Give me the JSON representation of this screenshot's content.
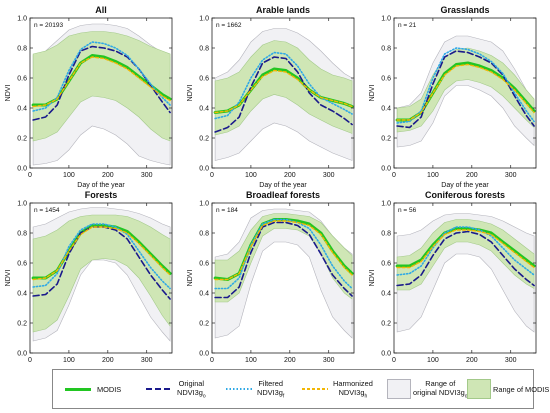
{
  "figure": {
    "ylabel": "NDVI",
    "xlabel": "Day of the year",
    "colors": {
      "modis": "#22c622",
      "original": "#1a1a8c",
      "filtered": "#2ea8e6",
      "harmonized": "#f2b705",
      "range_orig_fill": "#f1f1f4",
      "range_orig_edge": "#b4b4bc",
      "range_modis_fill": "#cfe6b5",
      "range_modis_edge": "#a3c98a"
    }
  },
  "legend": {
    "modis": "MODIS",
    "original_1": "Original",
    "original_2": "NDVI3g",
    "original_sub": "o",
    "filtered_1": "Filtered",
    "filtered_2": "NDVI3g",
    "filtered_sub": "f",
    "harmonized_1": "Harmonized",
    "harmonized_2": "NDVI3g",
    "harmonized_sub": "h",
    "range_orig_1": "Range of",
    "range_orig_2": "original NDVI3g",
    "range_orig_sub": "o",
    "range_modis": "Range of MODIS"
  },
  "chart_data": [
    {
      "type": "line",
      "title": "All",
      "n_label": "n = 20193",
      "xlabel": "Day of the year",
      "ylabel": "NDVI",
      "xlim": [
        0,
        365
      ],
      "ylim": [
        0,
        1.0
      ],
      "xticks": [
        0,
        100,
        200,
        300
      ],
      "yticks": [
        0,
        0.2,
        0.4,
        0.6,
        0.8,
        1.0
      ],
      "x": [
        8,
        40,
        70,
        100,
        130,
        160,
        190,
        220,
        250,
        280,
        310,
        340,
        360
      ],
      "series": [
        {
          "name": "MODIS",
          "values": [
            0.42,
            0.42,
            0.46,
            0.58,
            0.7,
            0.75,
            0.74,
            0.71,
            0.67,
            0.61,
            0.55,
            0.49,
            0.46
          ]
        },
        {
          "name": "Original NDVI3go",
          "values": [
            0.32,
            0.34,
            0.42,
            0.62,
            0.78,
            0.81,
            0.8,
            0.78,
            0.74,
            0.66,
            0.55,
            0.44,
            0.37
          ]
        },
        {
          "name": "Filtered NDVI3gf",
          "values": [
            0.38,
            0.4,
            0.47,
            0.65,
            0.79,
            0.84,
            0.83,
            0.8,
            0.75,
            0.66,
            0.56,
            0.47,
            0.42
          ]
        },
        {
          "name": "Harmonized NDVI3gh",
          "values": [
            0.41,
            0.42,
            0.46,
            0.58,
            0.7,
            0.74,
            0.73,
            0.7,
            0.66,
            0.6,
            0.54,
            0.48,
            0.45
          ]
        }
      ],
      "range_original": {
        "lower": [
          0.02,
          0.03,
          0.05,
          0.12,
          0.22,
          0.28,
          0.26,
          0.22,
          0.16,
          0.08,
          0.05,
          0.03,
          0.02
        ],
        "upper": [
          0.75,
          0.78,
          0.85,
          0.92,
          0.95,
          0.96,
          0.96,
          0.95,
          0.93,
          0.88,
          0.82,
          0.77,
          0.74
        ]
      },
      "range_modis": {
        "lower": [
          0.18,
          0.2,
          0.24,
          0.34,
          0.44,
          0.48,
          0.47,
          0.45,
          0.4,
          0.34,
          0.26,
          0.2,
          0.18
        ],
        "upper": [
          0.76,
          0.78,
          0.82,
          0.88,
          0.9,
          0.91,
          0.91,
          0.9,
          0.88,
          0.85,
          0.81,
          0.78,
          0.76
        ]
      }
    },
    {
      "type": "line",
      "title": "Arable lands",
      "n_label": "n = 1662",
      "xlabel": "Day of the year",
      "ylabel": "NDVI",
      "xlim": [
        0,
        365
      ],
      "ylim": [
        0,
        1.0
      ],
      "xticks": [
        0,
        100,
        200,
        300
      ],
      "yticks": [
        0,
        0.2,
        0.4,
        0.6,
        0.8,
        1.0
      ],
      "x": [
        8,
        40,
        70,
        100,
        130,
        160,
        190,
        220,
        250,
        280,
        310,
        340,
        360
      ],
      "series": [
        {
          "name": "MODIS",
          "values": [
            0.37,
            0.38,
            0.42,
            0.52,
            0.62,
            0.66,
            0.65,
            0.6,
            0.52,
            0.47,
            0.45,
            0.43,
            0.41
          ]
        },
        {
          "name": "Original NDVI3go",
          "values": [
            0.24,
            0.27,
            0.34,
            0.54,
            0.7,
            0.74,
            0.73,
            0.64,
            0.5,
            0.42,
            0.38,
            0.33,
            0.29
          ]
        },
        {
          "name": "Filtered NDVI3gf",
          "values": [
            0.33,
            0.35,
            0.44,
            0.6,
            0.72,
            0.77,
            0.76,
            0.68,
            0.56,
            0.47,
            0.43,
            0.39,
            0.36
          ]
        },
        {
          "name": "Harmonized NDVI3gh",
          "values": [
            0.37,
            0.38,
            0.42,
            0.52,
            0.61,
            0.65,
            0.64,
            0.59,
            0.52,
            0.47,
            0.45,
            0.43,
            0.41
          ]
        }
      ],
      "range_original": {
        "lower": [
          0.05,
          0.07,
          0.1,
          0.18,
          0.26,
          0.3,
          0.28,
          0.24,
          0.18,
          0.14,
          0.1,
          0.07,
          0.05
        ],
        "upper": [
          0.6,
          0.64,
          0.72,
          0.84,
          0.91,
          0.93,
          0.93,
          0.9,
          0.85,
          0.78,
          0.7,
          0.63,
          0.6
        ]
      },
      "range_modis": {
        "lower": [
          0.22,
          0.24,
          0.28,
          0.38,
          0.46,
          0.49,
          0.47,
          0.42,
          0.36,
          0.32,
          0.28,
          0.25,
          0.23
        ],
        "upper": [
          0.58,
          0.6,
          0.64,
          0.74,
          0.82,
          0.85,
          0.84,
          0.8,
          0.72,
          0.66,
          0.62,
          0.6,
          0.58
        ]
      }
    },
    {
      "type": "line",
      "title": "Grasslands",
      "n_label": "n = 21",
      "xlabel": "Day of the year",
      "ylabel": "NDVI",
      "xlim": [
        0,
        365
      ],
      "ylim": [
        0,
        1.0
      ],
      "xticks": [
        0,
        100,
        200,
        300
      ],
      "yticks": [
        0,
        0.2,
        0.4,
        0.6,
        0.8,
        1.0
      ],
      "x": [
        8,
        40,
        70,
        100,
        130,
        160,
        190,
        220,
        250,
        280,
        310,
        340,
        360
      ],
      "series": [
        {
          "name": "MODIS",
          "values": [
            0.32,
            0.32,
            0.37,
            0.5,
            0.63,
            0.69,
            0.7,
            0.68,
            0.65,
            0.6,
            0.53,
            0.44,
            0.38
          ]
        },
        {
          "name": "Original NDVI3go",
          "values": [
            0.28,
            0.27,
            0.34,
            0.56,
            0.74,
            0.78,
            0.77,
            0.74,
            0.7,
            0.62,
            0.48,
            0.35,
            0.28
          ]
        },
        {
          "name": "Filtered NDVI3gf",
          "values": [
            0.3,
            0.31,
            0.38,
            0.6,
            0.76,
            0.8,
            0.79,
            0.76,
            0.71,
            0.63,
            0.5,
            0.38,
            0.31
          ]
        },
        {
          "name": "Harmonized NDVI3gh",
          "values": [
            0.32,
            0.32,
            0.37,
            0.5,
            0.62,
            0.68,
            0.69,
            0.67,
            0.64,
            0.59,
            0.52,
            0.43,
            0.37
          ]
        }
      ],
      "range_original": {
        "lower": [
          0.14,
          0.15,
          0.18,
          0.3,
          0.48,
          0.55,
          0.55,
          0.52,
          0.48,
          0.4,
          0.28,
          0.2,
          0.15
        ],
        "upper": [
          0.4,
          0.42,
          0.5,
          0.7,
          0.84,
          0.88,
          0.88,
          0.86,
          0.84,
          0.78,
          0.66,
          0.52,
          0.44
        ]
      },
      "range_modis": {
        "lower": [
          0.24,
          0.25,
          0.28,
          0.38,
          0.52,
          0.58,
          0.59,
          0.57,
          0.54,
          0.48,
          0.4,
          0.32,
          0.27
        ],
        "upper": [
          0.4,
          0.41,
          0.46,
          0.62,
          0.74,
          0.79,
          0.8,
          0.78,
          0.75,
          0.7,
          0.62,
          0.52,
          0.46
        ]
      }
    },
    {
      "type": "line",
      "title": "Forests",
      "n_label": "n = 1454",
      "xlabel": "Day of the year",
      "ylabel": "NDVI",
      "xlim": [
        0,
        365
      ],
      "ylim": [
        0,
        1.0
      ],
      "xticks": [
        0,
        100,
        200,
        300
      ],
      "yticks": [
        0,
        0.2,
        0.4,
        0.6,
        0.8,
        1.0
      ],
      "x": [
        8,
        40,
        70,
        100,
        130,
        160,
        190,
        220,
        250,
        280,
        310,
        340,
        360
      ],
      "series": [
        {
          "name": "MODIS",
          "values": [
            0.5,
            0.5,
            0.55,
            0.68,
            0.8,
            0.85,
            0.85,
            0.84,
            0.81,
            0.74,
            0.66,
            0.58,
            0.53
          ]
        },
        {
          "name": "Original NDVI3go",
          "values": [
            0.38,
            0.39,
            0.46,
            0.66,
            0.8,
            0.84,
            0.84,
            0.82,
            0.76,
            0.64,
            0.52,
            0.42,
            0.36
          ]
        },
        {
          "name": "Filtered NDVI3gf",
          "values": [
            0.44,
            0.45,
            0.53,
            0.71,
            0.82,
            0.86,
            0.86,
            0.84,
            0.79,
            0.68,
            0.57,
            0.48,
            0.43
          ]
        },
        {
          "name": "Harmonized NDVI3gh",
          "values": [
            0.49,
            0.5,
            0.55,
            0.68,
            0.79,
            0.84,
            0.84,
            0.83,
            0.8,
            0.73,
            0.65,
            0.57,
            0.52
          ]
        }
      ],
      "range_original": {
        "lower": [
          0.08,
          0.1,
          0.15,
          0.32,
          0.52,
          0.62,
          0.62,
          0.6,
          0.52,
          0.38,
          0.24,
          0.14,
          0.08
        ],
        "upper": [
          0.84,
          0.86,
          0.9,
          0.94,
          0.96,
          0.97,
          0.97,
          0.96,
          0.95,
          0.93,
          0.9,
          0.86,
          0.84
        ]
      },
      "range_modis": {
        "lower": [
          0.14,
          0.16,
          0.22,
          0.38,
          0.56,
          0.62,
          0.63,
          0.62,
          0.58,
          0.5,
          0.38,
          0.25,
          0.18
        ],
        "upper": [
          0.76,
          0.78,
          0.82,
          0.88,
          0.91,
          0.92,
          0.92,
          0.92,
          0.91,
          0.88,
          0.84,
          0.79,
          0.76
        ]
      }
    },
    {
      "type": "line",
      "title": "Broadleaf forests",
      "n_label": "n = 184",
      "xlabel": "Day of the year",
      "ylabel": "NDVI",
      "xlim": [
        0,
        365
      ],
      "ylim": [
        0,
        1.0
      ],
      "xticks": [
        0,
        100,
        200,
        300
      ],
      "yticks": [
        0,
        0.2,
        0.4,
        0.6,
        0.8,
        1.0
      ],
      "x": [
        8,
        40,
        70,
        100,
        130,
        160,
        190,
        220,
        250,
        280,
        310,
        340,
        360
      ],
      "series": [
        {
          "name": "MODIS",
          "values": [
            0.5,
            0.49,
            0.53,
            0.72,
            0.86,
            0.89,
            0.89,
            0.88,
            0.86,
            0.8,
            0.68,
            0.58,
            0.53
          ]
        },
        {
          "name": "Original NDVI3go",
          "values": [
            0.37,
            0.37,
            0.44,
            0.67,
            0.84,
            0.87,
            0.87,
            0.85,
            0.79,
            0.66,
            0.52,
            0.43,
            0.38
          ]
        },
        {
          "name": "Filtered NDVI3gf",
          "values": [
            0.43,
            0.43,
            0.5,
            0.72,
            0.86,
            0.89,
            0.89,
            0.87,
            0.83,
            0.72,
            0.58,
            0.48,
            0.43
          ]
        },
        {
          "name": "Harmonized NDVI3gh",
          "values": [
            0.49,
            0.49,
            0.53,
            0.71,
            0.85,
            0.88,
            0.88,
            0.87,
            0.85,
            0.79,
            0.67,
            0.57,
            0.52
          ]
        }
      ],
      "range_original": {
        "lower": [
          0.1,
          0.12,
          0.18,
          0.46,
          0.68,
          0.74,
          0.74,
          0.72,
          0.64,
          0.42,
          0.24,
          0.15,
          0.1
        ],
        "upper": [
          0.64,
          0.66,
          0.74,
          0.9,
          0.95,
          0.96,
          0.96,
          0.95,
          0.94,
          0.88,
          0.78,
          0.7,
          0.66
        ]
      },
      "range_modis": {
        "lower": [
          0.34,
          0.34,
          0.4,
          0.6,
          0.78,
          0.83,
          0.83,
          0.82,
          0.78,
          0.66,
          0.5,
          0.4,
          0.36
        ],
        "upper": [
          0.62,
          0.62,
          0.68,
          0.82,
          0.91,
          0.93,
          0.93,
          0.92,
          0.91,
          0.87,
          0.78,
          0.7,
          0.65
        ]
      }
    },
    {
      "type": "line",
      "title": "Coniferous forests",
      "n_label": "n = 56",
      "xlabel": "Day of the year",
      "ylabel": "NDVI",
      "xlim": [
        0,
        365
      ],
      "ylim": [
        0,
        1.0
      ],
      "xticks": [
        0,
        100,
        200,
        300
      ],
      "yticks": [
        0,
        0.2,
        0.4,
        0.6,
        0.8,
        1.0
      ],
      "x": [
        8,
        40,
        70,
        100,
        130,
        160,
        190,
        220,
        250,
        280,
        310,
        340,
        360
      ],
      "series": [
        {
          "name": "MODIS",
          "values": [
            0.58,
            0.58,
            0.62,
            0.72,
            0.8,
            0.83,
            0.83,
            0.82,
            0.8,
            0.74,
            0.68,
            0.62,
            0.58
          ]
        },
        {
          "name": "Original NDVI3go",
          "values": [
            0.45,
            0.46,
            0.52,
            0.65,
            0.76,
            0.8,
            0.81,
            0.79,
            0.74,
            0.65,
            0.56,
            0.49,
            0.45
          ]
        },
        {
          "name": "Filtered NDVI3gf",
          "values": [
            0.52,
            0.53,
            0.58,
            0.7,
            0.8,
            0.84,
            0.84,
            0.82,
            0.78,
            0.7,
            0.62,
            0.56,
            0.52
          ]
        },
        {
          "name": "Harmonized NDVI3gh",
          "values": [
            0.57,
            0.57,
            0.61,
            0.71,
            0.79,
            0.82,
            0.82,
            0.81,
            0.79,
            0.73,
            0.67,
            0.61,
            0.57
          ]
        }
      ],
      "range_original": {
        "lower": [
          0.14,
          0.16,
          0.24,
          0.42,
          0.6,
          0.66,
          0.66,
          0.64,
          0.56,
          0.42,
          0.28,
          0.18,
          0.14
        ],
        "upper": [
          0.78,
          0.79,
          0.82,
          0.88,
          0.92,
          0.93,
          0.93,
          0.92,
          0.91,
          0.88,
          0.84,
          0.8,
          0.78
        ]
      },
      "range_modis": {
        "lower": [
          0.42,
          0.42,
          0.46,
          0.58,
          0.7,
          0.74,
          0.74,
          0.72,
          0.68,
          0.6,
          0.52,
          0.46,
          0.43
        ],
        "upper": [
          0.64,
          0.65,
          0.7,
          0.8,
          0.87,
          0.89,
          0.89,
          0.88,
          0.86,
          0.82,
          0.76,
          0.7,
          0.66
        ]
      }
    }
  ]
}
